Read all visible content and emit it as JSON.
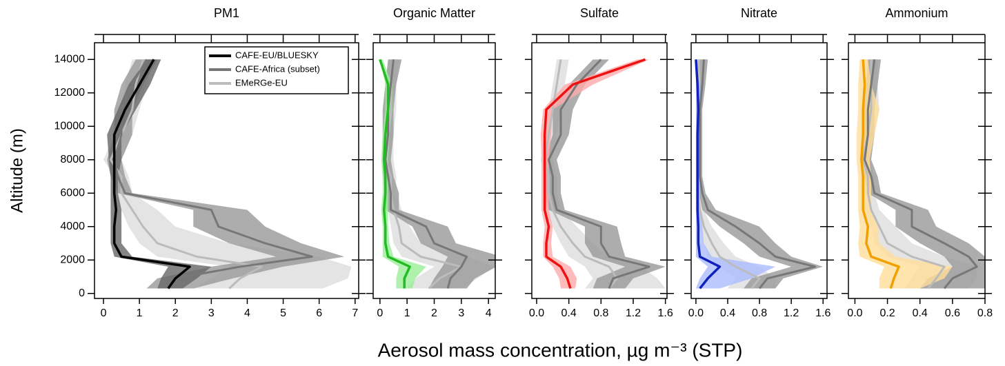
{
  "chart_data": [
    {
      "type": "profile",
      "title": "PM1",
      "ylabel": "Altitude (m)",
      "ytick_labels": true,
      "xlim": [
        -0.25,
        7.1
      ],
      "xticks": [
        0,
        1,
        2,
        3,
        4,
        5,
        6,
        7
      ],
      "ylim": [
        -300,
        15000
      ],
      "yticks": [
        0,
        2000,
        4000,
        6000,
        8000,
        10000,
        12000,
        14000
      ],
      "altitude": [
        300,
        900,
        1600,
        2200,
        3000,
        4000,
        5000,
        6000,
        7000,
        8000,
        9500,
        11000,
        12500,
        14000
      ],
      "series": [
        {
          "name": "EMeRGe-EU",
          "color": "#bbbbbb",
          "band_color": "#dddddd",
          "values": [
            3.5,
            3.8,
            4.4,
            2.6,
            1.5,
            1.1,
            0.8,
            0.5,
            0.5,
            0.2,
            0.5,
            0.8,
            0.9,
            1.1
          ],
          "lower": [
            2.5,
            3.0,
            3.5,
            1.5,
            1.0,
            0.7,
            0.5,
            0.3,
            0.3,
            0.0,
            0.3,
            0.5,
            0.6,
            0.8
          ],
          "upper": [
            6.1,
            6.8,
            6.9,
            6.0,
            3.5,
            2.0,
            1.5,
            0.8,
            0.7,
            0.5,
            0.8,
            1.0,
            1.2,
            1.4
          ]
        },
        {
          "name": "CAFE-Africa (subset)",
          "color": "#777777",
          "band_color": "#999999",
          "values": [
            1.8,
            2.0,
            3.8,
            5.8,
            4.5,
            3.2,
            3.0,
            0.6,
            0.4,
            0.3,
            0.5,
            0.5,
            0.8,
            1.2
          ],
          "lower": [
            1.2,
            1.5,
            3.0,
            4.8,
            3.5,
            2.5,
            2.5,
            0.4,
            0.2,
            0.1,
            0.3,
            0.3,
            0.5,
            0.9
          ],
          "upper": [
            2.5,
            3.6,
            5.0,
            6.7,
            5.5,
            4.5,
            4.0,
            0.8,
            0.6,
            0.5,
            0.8,
            0.8,
            1.1,
            1.5
          ]
        },
        {
          "name": "CAFE-EU/BLUESKY",
          "color": "#000000",
          "band_color": "#666666",
          "values": [
            1.8,
            2.0,
            2.4,
            0.5,
            0.3,
            0.3,
            0.35,
            0.3,
            0.3,
            0.3,
            0.3,
            0.6,
            1.0,
            1.4
          ],
          "lower": [
            1.5,
            1.6,
            1.8,
            0.3,
            0.2,
            0.2,
            0.2,
            0.2,
            0.2,
            0.15,
            0.1,
            0.4,
            0.7,
            1.2
          ],
          "upper": [
            2.2,
            2.6,
            3.0,
            0.8,
            0.5,
            0.5,
            0.5,
            0.4,
            0.4,
            0.5,
            0.5,
            0.9,
            1.3,
            1.6
          ]
        }
      ]
    },
    {
      "type": "profile",
      "title": "Organic Matter",
      "ytick_labels": false,
      "xlim": [
        -0.25,
        4.25
      ],
      "xticks": [
        0,
        1,
        2,
        3,
        4
      ],
      "ylim": [
        -300,
        15000
      ],
      "yticks": [
        0,
        2000,
        4000,
        6000,
        8000,
        10000,
        12000,
        14000
      ],
      "altitude": [
        300,
        900,
        1600,
        2200,
        3000,
        4000,
        5000,
        6000,
        7000,
        8000,
        9500,
        11000,
        12500,
        14000
      ],
      "series": [
        {
          "color": "#bbbbbb",
          "band_color": "#dddddd",
          "values": [
            1.8,
            2.2,
            3.0,
            1.5,
            0.8,
            0.7,
            0.5,
            0.4,
            0.4,
            0.2,
            0.3,
            0.4,
            0.4,
            0.5
          ],
          "lower": [
            1.0,
            1.3,
            2.0,
            0.8,
            0.5,
            0.4,
            0.3,
            0.2,
            0.2,
            0.1,
            0.1,
            0.2,
            0.2,
            0.3
          ],
          "upper": [
            3.0,
            3.6,
            4.2,
            3.2,
            1.5,
            1.1,
            0.8,
            0.6,
            0.6,
            0.5,
            0.5,
            0.6,
            0.6,
            0.7
          ]
        },
        {
          "color": "#777777",
          "band_color": "#999999",
          "values": [
            2.5,
            2.6,
            3.0,
            3.2,
            2.0,
            1.7,
            0.4,
            0.4,
            0.3,
            0.2,
            0.3,
            0.3,
            0.4,
            0.5
          ],
          "lower": [
            1.8,
            2.0,
            2.3,
            2.5,
            1.5,
            1.2,
            0.2,
            0.2,
            0.1,
            0.1,
            0.1,
            0.1,
            0.2,
            0.3
          ],
          "upper": [
            3.2,
            3.5,
            4.3,
            4.5,
            2.8,
            2.5,
            0.7,
            0.7,
            0.5,
            0.4,
            0.5,
            0.5,
            0.6,
            0.8
          ]
        },
        {
          "color": "#22bb22",
          "band_color": "#99ee99",
          "values": [
            0.9,
            0.9,
            1.1,
            0.3,
            0.2,
            0.2,
            0.15,
            0.2,
            0.2,
            0.15,
            0.2,
            0.3,
            0.3,
            0.0
          ],
          "lower": [
            0.6,
            0.6,
            0.7,
            0.1,
            0.1,
            0.1,
            0.05,
            0.1,
            0.1,
            0.05,
            0.1,
            0.2,
            0.2,
            0.0
          ],
          "upper": [
            1.2,
            1.3,
            1.7,
            0.5,
            0.35,
            0.3,
            0.3,
            0.3,
            0.3,
            0.3,
            0.35,
            0.45,
            0.45,
            0.1
          ]
        }
      ]
    },
    {
      "type": "profile",
      "title": "Sulfate",
      "ytick_labels": false,
      "xlabel": "Aerosol mass concentration, µg m⁻³ (STP)",
      "xlim": [
        -0.06,
        1.62
      ],
      "xticks": [
        {
          "value": 0,
          "label": "0.0"
        },
        0.4,
        0.8,
        1.2,
        1.6
      ],
      "ylim": [
        -300,
        15000
      ],
      "yticks": [
        0,
        2000,
        4000,
        6000,
        8000,
        10000,
        12000,
        14000
      ],
      "altitude": [
        300,
        900,
        1600,
        2200,
        3000,
        4000,
        5000,
        6000,
        7000,
        8000,
        9500,
        11000,
        12500,
        14000
      ],
      "series": [
        {
          "color": "#bbbbbb",
          "band_color": "#dddddd",
          "values": [
            0.9,
            1.0,
            0.9,
            0.6,
            0.45,
            0.3,
            0.2,
            0.15,
            0.15,
            0.1,
            0.15,
            0.2,
            0.25,
            0.3
          ],
          "lower": [
            0.6,
            0.7,
            0.6,
            0.4,
            0.3,
            0.2,
            0.1,
            0.1,
            0.1,
            0.05,
            0.1,
            0.15,
            0.2,
            0.25
          ],
          "upper": [
            1.6,
            1.5,
            1.3,
            0.9,
            0.7,
            0.5,
            0.3,
            0.25,
            0.25,
            0.2,
            0.25,
            0.3,
            0.35,
            0.4
          ]
        },
        {
          "color": "#777777",
          "band_color": "#999999",
          "values": [
            0.9,
            0.95,
            1.4,
            0.9,
            0.8,
            0.8,
            0.25,
            0.2,
            0.2,
            0.15,
            0.3,
            0.3,
            0.5,
            0.8
          ],
          "lower": [
            0.7,
            0.75,
            1.1,
            0.7,
            0.6,
            0.6,
            0.15,
            0.1,
            0.1,
            0.1,
            0.2,
            0.2,
            0.4,
            0.7
          ],
          "upper": [
            1.1,
            1.2,
            1.6,
            1.1,
            1.05,
            1.0,
            0.35,
            0.3,
            0.3,
            0.25,
            0.4,
            0.45,
            0.6,
            0.9
          ]
        },
        {
          "color": "#ee1111",
          "band_color": "#ffaaaa",
          "values": [
            0.42,
            0.38,
            0.3,
            0.12,
            0.12,
            0.15,
            0.1,
            0.1,
            0.1,
            0.1,
            0.1,
            0.12,
            0.45,
            1.35
          ],
          "lower": [
            0.3,
            0.28,
            0.2,
            0.08,
            0.08,
            0.1,
            0.06,
            0.06,
            0.06,
            0.06,
            0.05,
            0.08,
            0.35,
            1.25
          ],
          "upper": [
            0.48,
            0.5,
            0.42,
            0.2,
            0.18,
            0.2,
            0.15,
            0.15,
            0.15,
            0.15,
            0.18,
            0.2,
            0.7,
            1.4
          ]
        }
      ]
    },
    {
      "type": "profile",
      "title": "Nitrate",
      "ytick_labels": false,
      "xlim": [
        -0.06,
        1.65
      ],
      "xticks": [
        {
          "value": 0,
          "label": "0.0"
        },
        0.4,
        0.8,
        1.2,
        1.6
      ],
      "ylim": [
        -300,
        15000
      ],
      "yticks": [
        0,
        2000,
        4000,
        6000,
        8000,
        10000,
        12000,
        14000
      ],
      "altitude": [
        300,
        900,
        1600,
        2200,
        3000,
        4000,
        5000,
        6000,
        7000,
        8000,
        9500,
        11000,
        12500,
        14000
      ],
      "series": [
        {
          "color": "#bbbbbb",
          "band_color": "#dddddd",
          "values": [
            0.7,
            0.8,
            0.5,
            0.3,
            0.2,
            0.1,
            0.05,
            0.03,
            0.03,
            0.02,
            0.02,
            0.03,
            0.03,
            0.04
          ],
          "lower": [
            0.4,
            0.5,
            0.3,
            0.15,
            0.1,
            0.05,
            0.02,
            0.01,
            0.01,
            0.01,
            0.01,
            0.01,
            0.01,
            0.01
          ],
          "upper": [
            1.0,
            1.0,
            0.8,
            0.5,
            0.35,
            0.2,
            0.1,
            0.06,
            0.06,
            0.05,
            0.05,
            0.06,
            0.06,
            0.07
          ]
        },
        {
          "color": "#777777",
          "band_color": "#999999",
          "values": [
            0.8,
            0.9,
            1.5,
            1.0,
            0.8,
            0.5,
            0.15,
            0.08,
            0.05,
            0.05,
            0.05,
            0.05,
            0.08,
            0.1
          ],
          "lower": [
            0.6,
            0.7,
            1.2,
            0.8,
            0.6,
            0.3,
            0.08,
            0.04,
            0.02,
            0.02,
            0.02,
            0.02,
            0.05,
            0.05
          ],
          "upper": [
            1.0,
            1.1,
            1.6,
            1.2,
            1.0,
            0.8,
            0.25,
            0.12,
            0.08,
            0.08,
            0.08,
            0.08,
            0.12,
            0.15
          ]
        },
        {
          "color": "#1122bb",
          "band_color": "#aabbff",
          "values": [
            0.05,
            0.15,
            0.3,
            0.05,
            0.03,
            0.03,
            0.02,
            0.02,
            0.02,
            0.02,
            0.02,
            0.03,
            0.02,
            0.0
          ],
          "lower": [
            0.0,
            0.05,
            0.15,
            0.0,
            0.0,
            0.0,
            0.0,
            0.0,
            0.0,
            0.0,
            0.0,
            0.0,
            0.0,
            0.0
          ],
          "upper": [
            0.3,
            0.7,
            1.0,
            0.2,
            0.1,
            0.08,
            0.05,
            0.05,
            0.05,
            0.05,
            0.05,
            0.06,
            0.05,
            0.02
          ]
        }
      ]
    },
    {
      "type": "profile",
      "title": "Ammonium",
      "ytick_labels": false,
      "xlim": [
        -0.04,
        0.8
      ],
      "xticks": [
        {
          "value": 0,
          "label": "0.0"
        },
        0.2,
        0.4,
        0.6,
        0.8
      ],
      "ylim": [
        -300,
        15000
      ],
      "yticks": [
        0,
        2000,
        4000,
        6000,
        8000,
        10000,
        12000,
        14000
      ],
      "altitude": [
        300,
        900,
        1600,
        2200,
        3000,
        4000,
        5000,
        6000,
        7000,
        8000,
        9500,
        11000,
        12500,
        14000
      ],
      "series": [
        {
          "color": "#bbbbbb",
          "band_color": "#dddddd",
          "values": [
            0.45,
            0.5,
            0.55,
            0.35,
            0.2,
            0.15,
            0.1,
            0.08,
            0.08,
            0.05,
            0.08,
            0.1,
            0.1,
            0.1
          ],
          "lower": [
            0.3,
            0.35,
            0.4,
            0.2,
            0.12,
            0.1,
            0.06,
            0.05,
            0.05,
            0.03,
            0.05,
            0.06,
            0.06,
            0.06
          ],
          "upper": [
            0.7,
            0.75,
            0.75,
            0.55,
            0.35,
            0.25,
            0.15,
            0.12,
            0.12,
            0.09,
            0.12,
            0.15,
            0.14,
            0.14
          ]
        },
        {
          "color": "#777777",
          "band_color": "#999999",
          "values": [
            0.55,
            0.6,
            0.75,
            0.7,
            0.55,
            0.35,
            0.35,
            0.12,
            0.1,
            0.06,
            0.08,
            0.08,
            0.1,
            0.12
          ],
          "lower": [
            0.4,
            0.45,
            0.6,
            0.55,
            0.4,
            0.25,
            0.25,
            0.08,
            0.06,
            0.03,
            0.05,
            0.05,
            0.07,
            0.08
          ],
          "upper": [
            0.8,
            0.8,
            0.8,
            0.8,
            0.7,
            0.5,
            0.45,
            0.16,
            0.14,
            0.1,
            0.12,
            0.12,
            0.14,
            0.16
          ]
        },
        {
          "color": "#f0a000",
          "band_color": "#ffdd99",
          "values": [
            0.22,
            0.24,
            0.27,
            0.1,
            0.07,
            0.08,
            0.05,
            0.05,
            0.05,
            0.04,
            0.05,
            0.05,
            0.06,
            0.05
          ],
          "lower": [
            0.15,
            0.15,
            0.18,
            0.03,
            0.02,
            0.03,
            0.02,
            0.02,
            0.02,
            0.01,
            0.01,
            0.02,
            0.02,
            0.03
          ],
          "upper": [
            0.4,
            0.55,
            0.6,
            0.25,
            0.15,
            0.14,
            0.1,
            0.1,
            0.1,
            0.09,
            0.12,
            0.15,
            0.1,
            0.08
          ]
        }
      ]
    }
  ]
}
